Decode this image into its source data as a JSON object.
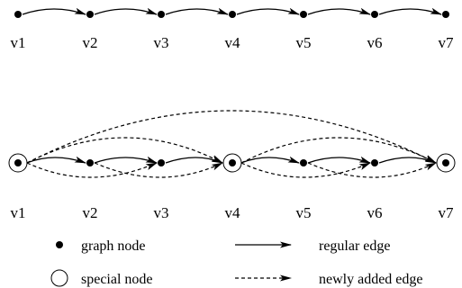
{
  "diagrams": [
    {
      "id": "original-chain",
      "nodes": [
        "v1",
        "v2",
        "v3",
        "v4",
        "v5",
        "v6",
        "v7"
      ],
      "special_nodes": [],
      "regular_edges": [
        [
          "v1",
          "v2"
        ],
        [
          "v2",
          "v3"
        ],
        [
          "v3",
          "v4"
        ],
        [
          "v4",
          "v5"
        ],
        [
          "v5",
          "v6"
        ],
        [
          "v6",
          "v7"
        ]
      ],
      "new_edges": []
    },
    {
      "id": "augmented-chain",
      "nodes": [
        "v1",
        "v2",
        "v3",
        "v4",
        "v5",
        "v6",
        "v7"
      ],
      "special_nodes": [
        "v1",
        "v4",
        "v7"
      ],
      "regular_edges": [
        [
          "v1",
          "v2"
        ],
        [
          "v2",
          "v3"
        ],
        [
          "v3",
          "v4"
        ],
        [
          "v4",
          "v5"
        ],
        [
          "v5",
          "v6"
        ],
        [
          "v6",
          "v7"
        ]
      ],
      "new_edges": [
        [
          "v1",
          "v7"
        ],
        [
          "v1",
          "v4"
        ],
        [
          "v4",
          "v7"
        ],
        [
          "v1",
          "v3"
        ],
        [
          "v2",
          "v4"
        ],
        [
          "v4",
          "v6"
        ],
        [
          "v5",
          "v7"
        ]
      ]
    }
  ],
  "legend": {
    "graph_node": "graph node",
    "special_node": "special node",
    "regular_edge": "regular edge",
    "newly_added_edge": "newly added edge"
  }
}
